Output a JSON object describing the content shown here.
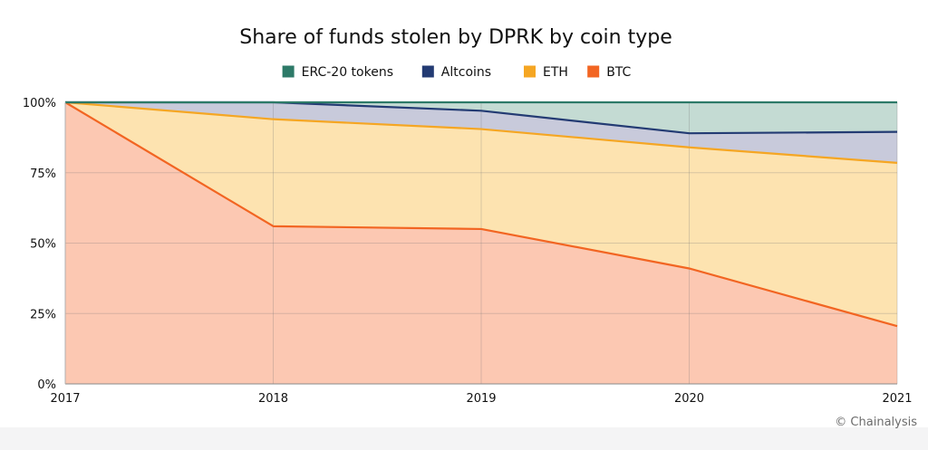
{
  "credit": "© Chainalysis",
  "chart_data": {
    "type": "area",
    "stacked": true,
    "title": "Share of funds stolen by DPRK by coin type",
    "xlabel": "",
    "ylabel": "",
    "x": [
      "2017",
      "2018",
      "2019",
      "2020",
      "2021"
    ],
    "ylim": [
      0,
      100
    ],
    "yticks": [
      {
        "value": 0,
        "label": "0%"
      },
      {
        "value": 25,
        "label": "25%"
      },
      {
        "value": 50,
        "label": "50%"
      },
      {
        "value": 75,
        "label": "75%"
      },
      {
        "value": 100,
        "label": "100%"
      }
    ],
    "legend_position": "top-center",
    "grid": true,
    "series": [
      {
        "name": "BTC",
        "line_color": "#f26522",
        "fill_color": "#fcc8b2",
        "values": [
          100,
          56,
          55,
          41,
          20.5
        ]
      },
      {
        "name": "ETH",
        "line_color": "#f5a623",
        "fill_color": "#fde3b0",
        "values": [
          0,
          38,
          35.5,
          43,
          58
        ]
      },
      {
        "name": "Altcoins",
        "line_color": "#233b73",
        "fill_color": "#c8cadb",
        "values": [
          0,
          6,
          6.5,
          5,
          11
        ]
      },
      {
        "name": "ERC-20 tokens",
        "line_color": "#2d7a68",
        "fill_color": "#c4dbd3",
        "values": [
          0,
          0,
          3,
          11,
          10.5
        ]
      }
    ],
    "legend_order": [
      "ERC-20 tokens",
      "Altcoins",
      "ETH",
      "BTC"
    ]
  }
}
